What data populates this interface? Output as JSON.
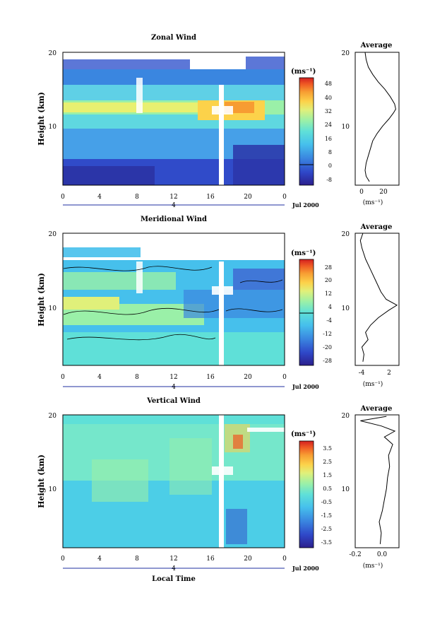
{
  "figure": {
    "xlabel": "Local Time",
    "ylabel": "Height (km)",
    "date_label": "Jul 2000",
    "day_label": "4",
    "unit": "(ms⁻¹)"
  },
  "chart_data": [
    {
      "type": "heatmap",
      "title": "Zonal Wind",
      "xlabel": "",
      "ylabel": "Height (km)",
      "x_ticks": [
        "0",
        "4",
        "8",
        "12",
        "16",
        "20",
        "0"
      ],
      "y_ticks": [
        "10",
        "20"
      ],
      "xlim": [
        0,
        24
      ],
      "ylim": [
        2,
        20
      ],
      "colorbar": {
        "unit": "(ms⁻¹)",
        "ticks": [
          "48",
          "40",
          "32",
          "24",
          "16",
          "8",
          "0",
          "-8"
        ],
        "range": [
          -8,
          52
        ]
      },
      "profile": {
        "title": "Average",
        "x_ticks": [
          "0",
          "20"
        ],
        "xlim": [
          -6,
          34
        ],
        "y_ticks": [
          "10",
          "20"
        ],
        "points": [
          [
            7,
            2.5
          ],
          [
            4,
            3.2
          ],
          [
            3,
            4
          ],
          [
            4,
            5
          ],
          [
            6,
            6
          ],
          [
            8,
            7
          ],
          [
            10,
            8
          ],
          [
            14,
            9
          ],
          [
            19,
            10
          ],
          [
            25,
            11
          ],
          [
            29,
            11.8
          ],
          [
            31,
            12.3
          ],
          [
            30,
            13
          ],
          [
            26,
            14
          ],
          [
            21,
            15
          ],
          [
            15,
            16
          ],
          [
            10,
            17
          ],
          [
            6,
            18
          ],
          [
            4,
            19
          ],
          [
            3,
            20
          ]
        ]
      }
    },
    {
      "type": "heatmap",
      "title": "Meridional Wind",
      "xlabel": "",
      "ylabel": "Height (km)",
      "x_ticks": [
        "0",
        "4",
        "8",
        "12",
        "16",
        "20",
        "0"
      ],
      "y_ticks": [
        "10",
        "20"
      ],
      "xlim": [
        0,
        24
      ],
      "ylim": [
        2,
        20
      ],
      "colorbar": {
        "unit": "(ms⁻¹)",
        "ticks": [
          "28",
          "20",
          "12",
          "4",
          "-4",
          "-12",
          "-20",
          "-28"
        ],
        "range": [
          -32,
          32
        ]
      },
      "profile": {
        "title": "Average",
        "x_ticks": [
          "-4",
          "2"
        ],
        "xlim": [
          -5.5,
          3
        ],
        "y_ticks": [
          "10",
          "20"
        ],
        "points": [
          [
            -4,
            2.5
          ],
          [
            -3.8,
            3.5
          ],
          [
            -4.2,
            4.5
          ],
          [
            -3,
            5.5
          ],
          [
            -3.5,
            6.5
          ],
          [
            -2.5,
            7.5
          ],
          [
            -1,
            8.5
          ],
          [
            1,
            9.5
          ],
          [
            2.6,
            10.2
          ],
          [
            0.5,
            11
          ],
          [
            -0.5,
            12
          ],
          [
            -1.5,
            13.5
          ],
          [
            -2.5,
            15
          ],
          [
            -3.5,
            16.5
          ],
          [
            -4.2,
            18
          ],
          [
            -4.5,
            19
          ],
          [
            -4,
            20
          ]
        ]
      }
    },
    {
      "type": "heatmap",
      "title": "Vertical Wind",
      "xlabel": "Local Time",
      "ylabel": "Height (km)",
      "x_ticks": [
        "0",
        "4",
        "8",
        "12",
        "16",
        "20",
        "0"
      ],
      "y_ticks": [
        "10",
        "20"
      ],
      "xlim": [
        0,
        24
      ],
      "ylim": [
        2,
        20
      ],
      "colorbar": {
        "unit": "(ms⁻¹)",
        "ticks": [
          "3.5",
          "2.5",
          "1.5",
          "0.5",
          "-0.5",
          "-1.5",
          "-2.5",
          "-3.5"
        ],
        "range": [
          -4,
          4
        ]
      },
      "profile": {
        "title": "Average",
        "x_ticks": [
          "-0.2",
          "0.0"
        ],
        "xlim": [
          -0.3,
          0.12
        ],
        "y_ticks": [
          "10",
          "20"
        ],
        "points": [
          [
            -0.06,
            2.5
          ],
          [
            -0.05,
            4
          ],
          [
            -0.07,
            5.5
          ],
          [
            -0.04,
            7
          ],
          [
            -0.02,
            8.5
          ],
          [
            0.0,
            10
          ],
          [
            0.01,
            11.5
          ],
          [
            0.03,
            13
          ],
          [
            0.02,
            14.5
          ],
          [
            0.06,
            16
          ],
          [
            -0.02,
            17
          ],
          [
            0.08,
            17.8
          ],
          [
            -0.05,
            18.5
          ],
          [
            -0.25,
            19.2
          ],
          [
            0.0,
            19.8
          ]
        ]
      }
    }
  ],
  "colors": {
    "colormap": [
      "#2b1f8c",
      "#2f47c8",
      "#3a86e0",
      "#46c0ec",
      "#5fe0d8",
      "#9af0a8",
      "#e0f07a",
      "#fcd24a",
      "#f79c32",
      "#ef5a24",
      "#d42020"
    ]
  }
}
